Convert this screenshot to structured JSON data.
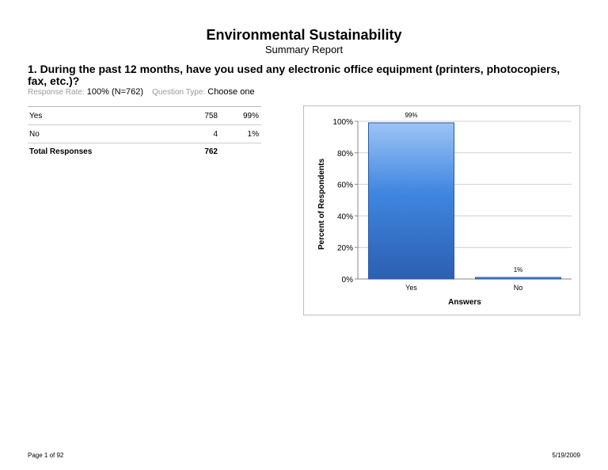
{
  "report": {
    "title": "Environmental Sustainability",
    "subtitle": "Summary Report"
  },
  "question": {
    "text": "1. During the past 12 months, have you used any electronic office equipment (printers, photocopiers, fax, etc.)?",
    "response_rate_label": "Response Rate:",
    "response_rate_value": "100% (N=762)",
    "question_type_label": "Question Type:",
    "question_type_value": "Choose one"
  },
  "table": {
    "rows": [
      {
        "answer": "Yes",
        "count": "758",
        "percent": "99%"
      },
      {
        "answer": "No",
        "count": "4",
        "percent": "1%"
      }
    ],
    "total_label": "Total Responses",
    "total_value": "762"
  },
  "chart_data": {
    "type": "bar",
    "categories": [
      "Yes",
      "No"
    ],
    "values": [
      99,
      1
    ],
    "data_labels": [
      "99%",
      "1%"
    ],
    "ylabel": "Percent of Respondents",
    "xlabel": "Answers",
    "ylim": [
      0,
      100
    ],
    "yticks": [
      "0%",
      "20%",
      "40%",
      "60%",
      "80%",
      "100%"
    ],
    "grid": true,
    "bar_color": "#3f86e0"
  },
  "footer": {
    "page": "Page 1 of 92",
    "date": "5/19/2009"
  }
}
